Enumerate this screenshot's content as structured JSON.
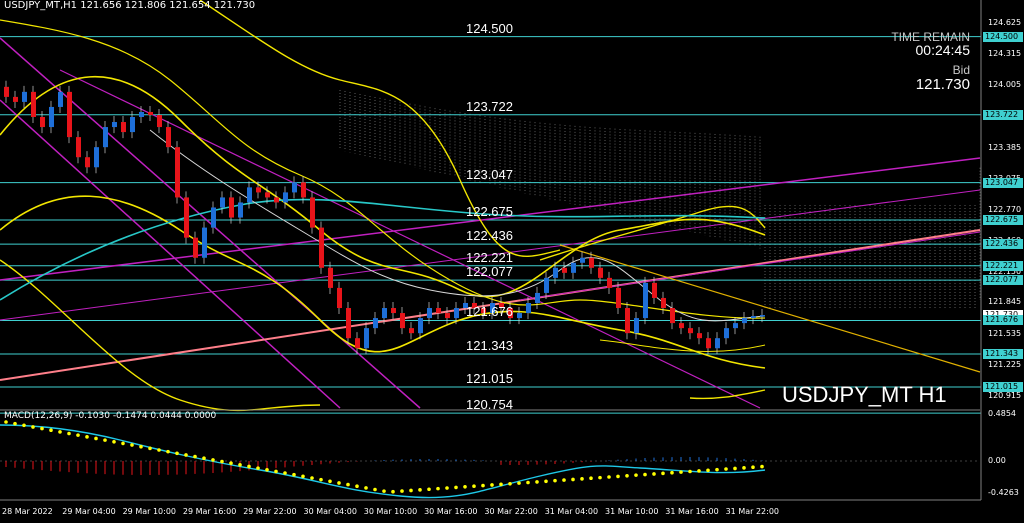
{
  "header": {
    "title_line": "USDJPY_MT,H1  121.656 121.806 121.654 121.730",
    "macd_line": "MACD(12,26,9) -0.1030 -0.1474 0.0444 0.0000"
  },
  "info": {
    "time_remain_label": "TIME REMAIN",
    "time_remain_value": "00:24:45",
    "bid_label": "Bid",
    "bid_value": "121.730"
  },
  "symbol_label": "USDJPY_MT H1",
  "levels": [
    {
      "label": "124.500"
    },
    {
      "label": "123.722"
    },
    {
      "label": "123.047"
    },
    {
      "label": "122.675"
    },
    {
      "label": "122.436"
    },
    {
      "label": "122.221"
    },
    {
      "label": "122.077"
    },
    {
      "label": "121.676"
    },
    {
      "label": "121.343"
    },
    {
      "label": "121.015"
    },
    {
      "label": "120.754"
    }
  ],
  "price_axis": [
    "124.625",
    "124.315",
    "124.005",
    "123.695",
    "123.385",
    "123.075",
    "122.770",
    "122.460",
    "122.150",
    "121.845",
    "121.535",
    "121.225",
    "120.915"
  ],
  "price_boxes": [
    "124.500",
    "123.722",
    "123.047",
    "122.675",
    "122.436",
    "122.221",
    "122.077",
    "121.730",
    "121.676",
    "121.343",
    "121.015"
  ],
  "macd_axis": [
    "0.4854",
    "0.00",
    "-0.4263"
  ],
  "time_axis": [
    "28 Mar 2022",
    "29 Mar 04:00",
    "29 Mar 10:00",
    "29 Mar 16:00",
    "29 Mar 22:00",
    "30 Mar 04:00",
    "30 Mar 10:00",
    "30 Mar 16:00",
    "30 Mar 22:00",
    "31 Mar 04:00",
    "31 Mar 10:00",
    "31 Mar 16:00",
    "31 Mar 22:00"
  ],
  "colors": {
    "bull": "#1e6fd9",
    "bear": "#e8141a",
    "level": "#3fd0d0",
    "bb": "#f2e600",
    "channel": "#c020c0",
    "trend": "#ff7f8a",
    "macd_main": "#1ec8e8",
    "macd_signal": "#ffff00"
  }
}
